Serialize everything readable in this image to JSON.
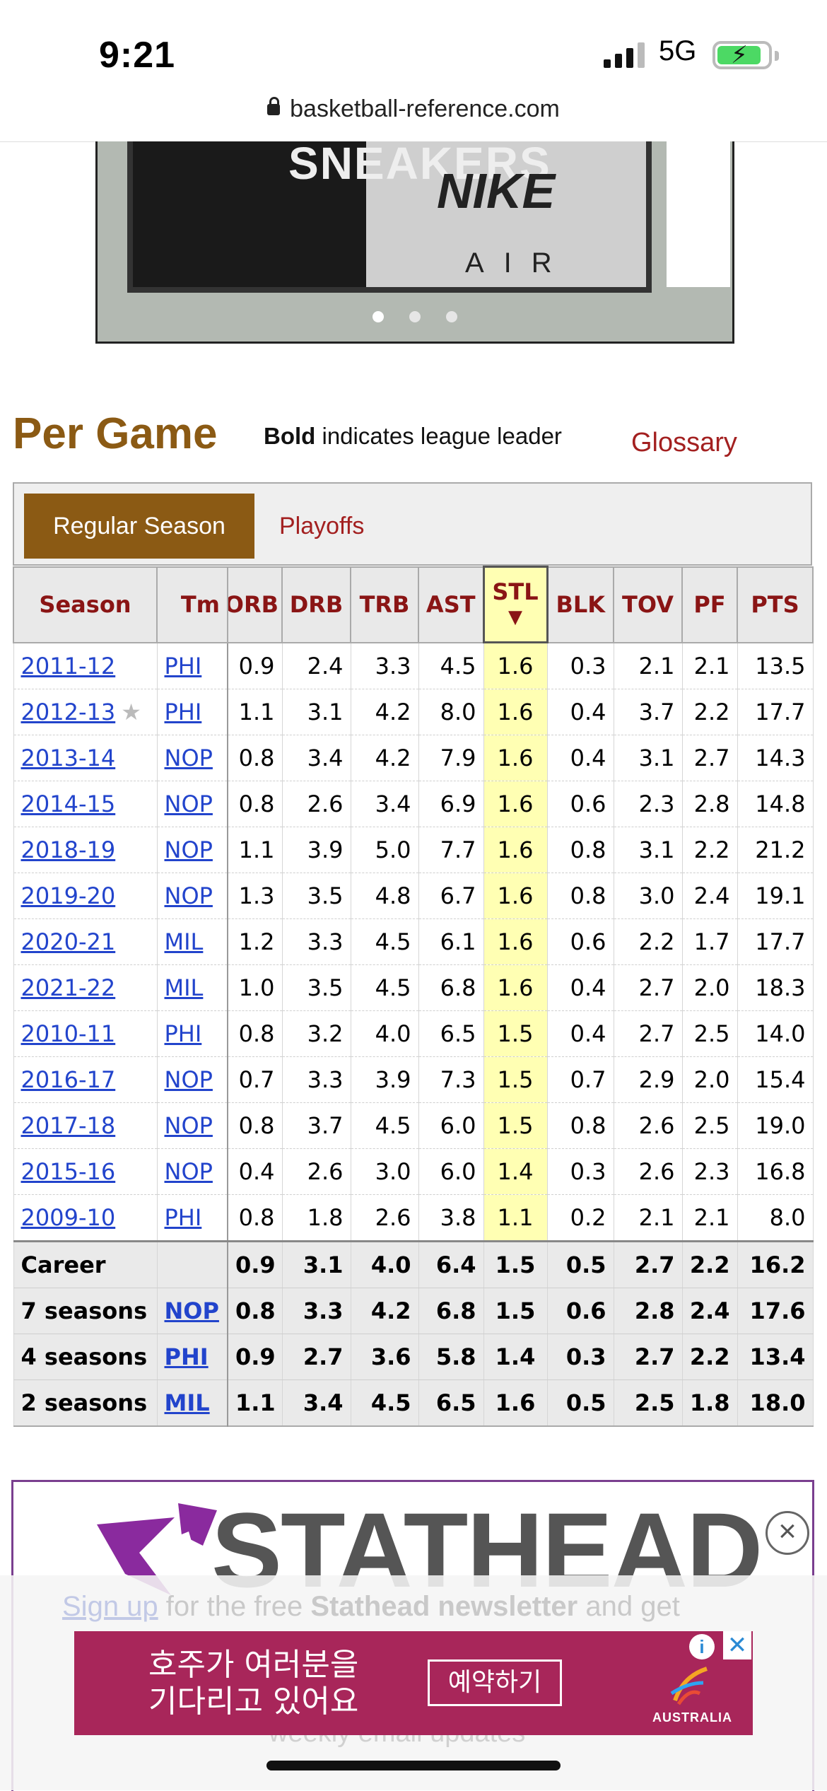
{
  "status_bar": {
    "time": "9:21",
    "network": "5G"
  },
  "browser": {
    "url": "basketball-reference.com"
  },
  "carousel_ad": {
    "slide_word": "SNEAKERS",
    "brand_text": "NIKE",
    "sub_text": "AIR",
    "dots": 3,
    "active_dot": 0
  },
  "section": {
    "title": "Per Game",
    "note_bold": "Bold",
    "note_rest": " indicates league leader",
    "glossary": "Glossary"
  },
  "tabs": [
    {
      "label": "Regular Season",
      "active": true
    },
    {
      "label": "Playoffs",
      "active": false
    }
  ],
  "table": {
    "columns": [
      "Season",
      "Tm",
      "ORB",
      "DRB",
      "TRB",
      "AST",
      "STL",
      "BLK",
      "TOV",
      "PF",
      "PTS"
    ],
    "sorted_column": "STL",
    "sort_indicator": "▼",
    "rows": [
      {
        "season": "2011-12",
        "star": false,
        "tm": "PHI",
        "orb": "0.9",
        "drb": "2.4",
        "trb": "3.3",
        "ast": "4.5",
        "stl": "1.6",
        "blk": "0.3",
        "tov": "2.1",
        "pf": "2.1",
        "pts": "13.5"
      },
      {
        "season": "2012-13",
        "star": true,
        "tm": "PHI",
        "orb": "1.1",
        "drb": "3.1",
        "trb": "4.2",
        "ast": "8.0",
        "stl": "1.6",
        "blk": "0.4",
        "tov": "3.7",
        "pf": "2.2",
        "pts": "17.7"
      },
      {
        "season": "2013-14",
        "star": false,
        "tm": "NOP",
        "orb": "0.8",
        "drb": "3.4",
        "trb": "4.2",
        "ast": "7.9",
        "stl": "1.6",
        "blk": "0.4",
        "tov": "3.1",
        "pf": "2.7",
        "pts": "14.3"
      },
      {
        "season": "2014-15",
        "star": false,
        "tm": "NOP",
        "orb": "0.8",
        "drb": "2.6",
        "trb": "3.4",
        "ast": "6.9",
        "stl": "1.6",
        "blk": "0.6",
        "tov": "2.3",
        "pf": "2.8",
        "pts": "14.8"
      },
      {
        "season": "2018-19",
        "star": false,
        "tm": "NOP",
        "orb": "1.1",
        "drb": "3.9",
        "trb": "5.0",
        "ast": "7.7",
        "stl": "1.6",
        "blk": "0.8",
        "tov": "3.1",
        "pf": "2.2",
        "pts": "21.2"
      },
      {
        "season": "2019-20",
        "star": false,
        "tm": "NOP",
        "orb": "1.3",
        "drb": "3.5",
        "trb": "4.8",
        "ast": "6.7",
        "stl": "1.6",
        "blk": "0.8",
        "tov": "3.0",
        "pf": "2.4",
        "pts": "19.1"
      },
      {
        "season": "2020-21",
        "star": false,
        "tm": "MIL",
        "orb": "1.2",
        "drb": "3.3",
        "trb": "4.5",
        "ast": "6.1",
        "stl": "1.6",
        "blk": "0.6",
        "tov": "2.2",
        "pf": "1.7",
        "pts": "17.7"
      },
      {
        "season": "2021-22",
        "star": false,
        "tm": "MIL",
        "orb": "1.0",
        "drb": "3.5",
        "trb": "4.5",
        "ast": "6.8",
        "stl": "1.6",
        "blk": "0.4",
        "tov": "2.7",
        "pf": "2.0",
        "pts": "18.3"
      },
      {
        "season": "2010-11",
        "star": false,
        "tm": "PHI",
        "orb": "0.8",
        "drb": "3.2",
        "trb": "4.0",
        "ast": "6.5",
        "stl": "1.5",
        "blk": "0.4",
        "tov": "2.7",
        "pf": "2.5",
        "pts": "14.0"
      },
      {
        "season": "2016-17",
        "star": false,
        "tm": "NOP",
        "orb": "0.7",
        "drb": "3.3",
        "trb": "3.9",
        "ast": "7.3",
        "stl": "1.5",
        "blk": "0.7",
        "tov": "2.9",
        "pf": "2.0",
        "pts": "15.4"
      },
      {
        "season": "2017-18",
        "star": false,
        "tm": "NOP",
        "orb": "0.8",
        "drb": "3.7",
        "trb": "4.5",
        "ast": "6.0",
        "stl": "1.5",
        "blk": "0.8",
        "tov": "2.6",
        "pf": "2.5",
        "pts": "19.0"
      },
      {
        "season": "2015-16",
        "star": false,
        "tm": "NOP",
        "orb": "0.4",
        "drb": "2.6",
        "trb": "3.0",
        "ast": "6.0",
        "stl": "1.4",
        "blk": "0.3",
        "tov": "2.6",
        "pf": "2.3",
        "pts": "16.8"
      },
      {
        "season": "2009-10",
        "star": false,
        "tm": "PHI",
        "orb": "0.8",
        "drb": "1.8",
        "trb": "2.6",
        "ast": "3.8",
        "stl": "1.1",
        "blk": "0.2",
        "tov": "2.1",
        "pf": "2.1",
        "pts": "8.0"
      }
    ],
    "footer": [
      {
        "label": "Career",
        "tm": "",
        "orb": "0.9",
        "drb": "3.1",
        "trb": "4.0",
        "ast": "6.4",
        "stl": "1.5",
        "blk": "0.5",
        "tov": "2.7",
        "pf": "2.2",
        "pts": "16.2"
      },
      {
        "label": "7 seasons",
        "tm": "NOP",
        "orb": "0.8",
        "drb": "3.3",
        "trb": "4.2",
        "ast": "6.8",
        "stl": "1.5",
        "blk": "0.6",
        "tov": "2.8",
        "pf": "2.4",
        "pts": "17.6"
      },
      {
        "label": "4 seasons",
        "tm": "PHI",
        "orb": "0.9",
        "drb": "2.7",
        "trb": "3.6",
        "ast": "5.8",
        "stl": "1.4",
        "blk": "0.3",
        "tov": "2.7",
        "pf": "2.2",
        "pts": "13.4"
      },
      {
        "label": "2 seasons",
        "tm": "MIL",
        "orb": "1.1",
        "drb": "3.4",
        "trb": "4.5",
        "ast": "6.5",
        "stl": "1.6",
        "blk": "0.5",
        "tov": "2.5",
        "pf": "1.8",
        "pts": "18.0"
      }
    ]
  },
  "stathead": {
    "logo_text": "STATHEAD",
    "signup_link": "Sign up",
    "signup_mid": " for the free ",
    "signup_bold": "Stathead newsletter",
    "signup_end": " and get",
    "bottom_partial": "weekly email updates",
    "close_symbol": "×"
  },
  "korean_ad": {
    "line1": "호주가 여러분을",
    "line2": "기다리고 있어요",
    "cta": "예약하기",
    "brand": "AUSTRALIA",
    "info_symbol": "i",
    "close_symbol": "✕"
  },
  "colors": {
    "brown": "#8b5a14",
    "crimson": "#a32020",
    "link": "#2244cc",
    "sort_highlight": "#ffffb3",
    "ad_bg": "#a8265a"
  }
}
